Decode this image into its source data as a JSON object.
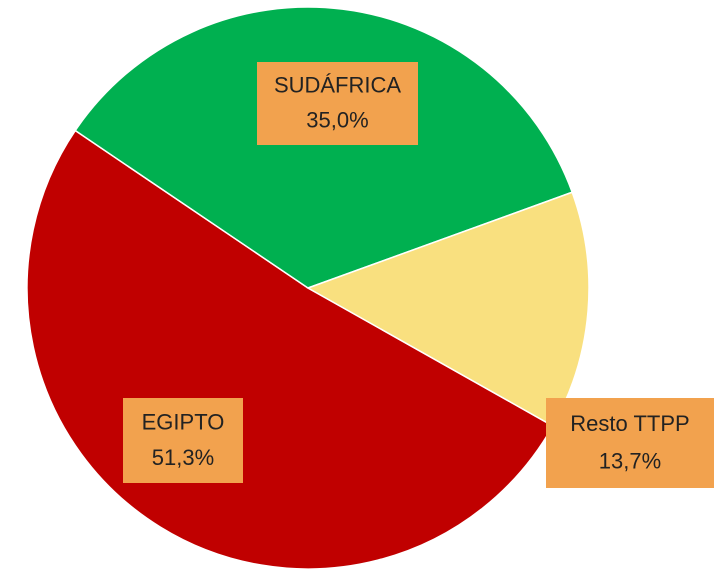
{
  "chart_data": {
    "type": "pie",
    "categories": [
      "EGIPTO",
      "SUDÁFRICA",
      "Resto TTPP"
    ],
    "values": [
      51.3,
      35.0,
      13.7
    ],
    "value_labels": [
      "51,3%",
      "35,0%",
      "13,7%"
    ],
    "colors": [
      "#c00000",
      "#00b050",
      "#f9e07f"
    ]
  }
}
